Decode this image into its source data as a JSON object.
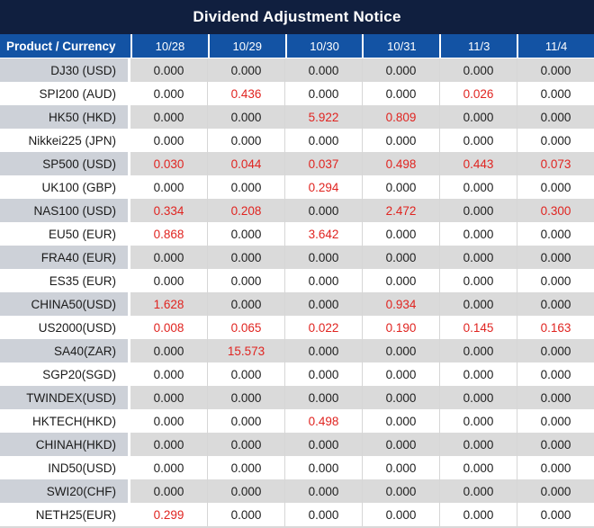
{
  "colors": {
    "title_bg": "#101f3f",
    "header_bg": "#1353a4",
    "row_gray_label": "#cdd1d8",
    "row_gray_value": "#dadada",
    "value_red": "#e02420"
  },
  "chart_data": {
    "type": "table",
    "title": "Dividend Adjustment Notice",
    "product_column_label": "Product / Currency",
    "date_columns": [
      "10/28",
      "10/29",
      "10/30",
      "10/31",
      "11/3",
      "11/4"
    ],
    "rows": [
      {
        "product": "DJ30 (USD)",
        "values": [
          "0.000",
          "0.000",
          "0.000",
          "0.000",
          "0.000",
          "0.000"
        ],
        "red": [
          false,
          false,
          false,
          false,
          false,
          false
        ]
      },
      {
        "product": "SPI200 (AUD)",
        "values": [
          "0.000",
          "0.436",
          "0.000",
          "0.000",
          "0.026",
          "0.000"
        ],
        "red": [
          false,
          true,
          false,
          false,
          true,
          false
        ]
      },
      {
        "product": "HK50 (HKD)",
        "values": [
          "0.000",
          "0.000",
          "5.922",
          "0.809",
          "0.000",
          "0.000"
        ],
        "red": [
          false,
          false,
          true,
          true,
          false,
          false
        ]
      },
      {
        "product": "Nikkei225 (JPN)",
        "values": [
          "0.000",
          "0.000",
          "0.000",
          "0.000",
          "0.000",
          "0.000"
        ],
        "red": [
          false,
          false,
          false,
          false,
          false,
          false
        ]
      },
      {
        "product": "SP500 (USD)",
        "values": [
          "0.030",
          "0.044",
          "0.037",
          "0.498",
          "0.443",
          "0.073"
        ],
        "red": [
          true,
          true,
          true,
          true,
          true,
          true
        ]
      },
      {
        "product": "UK100 (GBP)",
        "values": [
          "0.000",
          "0.000",
          "0.294",
          "0.000",
          "0.000",
          "0.000"
        ],
        "red": [
          false,
          false,
          true,
          false,
          false,
          false
        ]
      },
      {
        "product": "NAS100 (USD)",
        "values": [
          "0.334",
          "0.208",
          "0.000",
          "2.472",
          "0.000",
          "0.300"
        ],
        "red": [
          true,
          true,
          false,
          true,
          false,
          true
        ]
      },
      {
        "product": "EU50 (EUR)",
        "values": [
          "0.868",
          "0.000",
          "3.642",
          "0.000",
          "0.000",
          "0.000"
        ],
        "red": [
          true,
          false,
          true,
          false,
          false,
          false
        ]
      },
      {
        "product": "FRA40 (EUR)",
        "values": [
          "0.000",
          "0.000",
          "0.000",
          "0.000",
          "0.000",
          "0.000"
        ],
        "red": [
          false,
          false,
          false,
          false,
          false,
          false
        ]
      },
      {
        "product": "ES35 (EUR)",
        "values": [
          "0.000",
          "0.000",
          "0.000",
          "0.000",
          "0.000",
          "0.000"
        ],
        "red": [
          false,
          false,
          false,
          false,
          false,
          false
        ]
      },
      {
        "product": "CHINA50(USD)",
        "values": [
          "1.628",
          "0.000",
          "0.000",
          "0.934",
          "0.000",
          "0.000"
        ],
        "red": [
          true,
          false,
          false,
          true,
          false,
          false
        ]
      },
      {
        "product": "US2000(USD)",
        "values": [
          "0.008",
          "0.065",
          "0.022",
          "0.190",
          "0.145",
          "0.163"
        ],
        "red": [
          true,
          true,
          true,
          true,
          true,
          true
        ]
      },
      {
        "product": "SA40(ZAR)",
        "values": [
          "0.000",
          "15.573",
          "0.000",
          "0.000",
          "0.000",
          "0.000"
        ],
        "red": [
          false,
          true,
          false,
          false,
          false,
          false
        ]
      },
      {
        "product": "SGP20(SGD)",
        "values": [
          "0.000",
          "0.000",
          "0.000",
          "0.000",
          "0.000",
          "0.000"
        ],
        "red": [
          false,
          false,
          false,
          false,
          false,
          false
        ]
      },
      {
        "product": "TWINDEX(USD)",
        "values": [
          "0.000",
          "0.000",
          "0.000",
          "0.000",
          "0.000",
          "0.000"
        ],
        "red": [
          false,
          false,
          false,
          false,
          false,
          false
        ]
      },
      {
        "product": "HKTECH(HKD)",
        "values": [
          "0.000",
          "0.000",
          "0.498",
          "0.000",
          "0.000",
          "0.000"
        ],
        "red": [
          false,
          false,
          true,
          false,
          false,
          false
        ]
      },
      {
        "product": "CHINAH(HKD)",
        "values": [
          "0.000",
          "0.000",
          "0.000",
          "0.000",
          "0.000",
          "0.000"
        ],
        "red": [
          false,
          false,
          false,
          false,
          false,
          false
        ]
      },
      {
        "product": "IND50(USD)",
        "values": [
          "0.000",
          "0.000",
          "0.000",
          "0.000",
          "0.000",
          "0.000"
        ],
        "red": [
          false,
          false,
          false,
          false,
          false,
          false
        ]
      },
      {
        "product": "SWI20(CHF)",
        "values": [
          "0.000",
          "0.000",
          "0.000",
          "0.000",
          "0.000",
          "0.000"
        ],
        "red": [
          false,
          false,
          false,
          false,
          false,
          false
        ]
      },
      {
        "product": "NETH25(EUR)",
        "values": [
          "0.299",
          "0.000",
          "0.000",
          "0.000",
          "0.000",
          "0.000"
        ],
        "red": [
          true,
          false,
          false,
          false,
          false,
          false
        ]
      }
    ]
  }
}
